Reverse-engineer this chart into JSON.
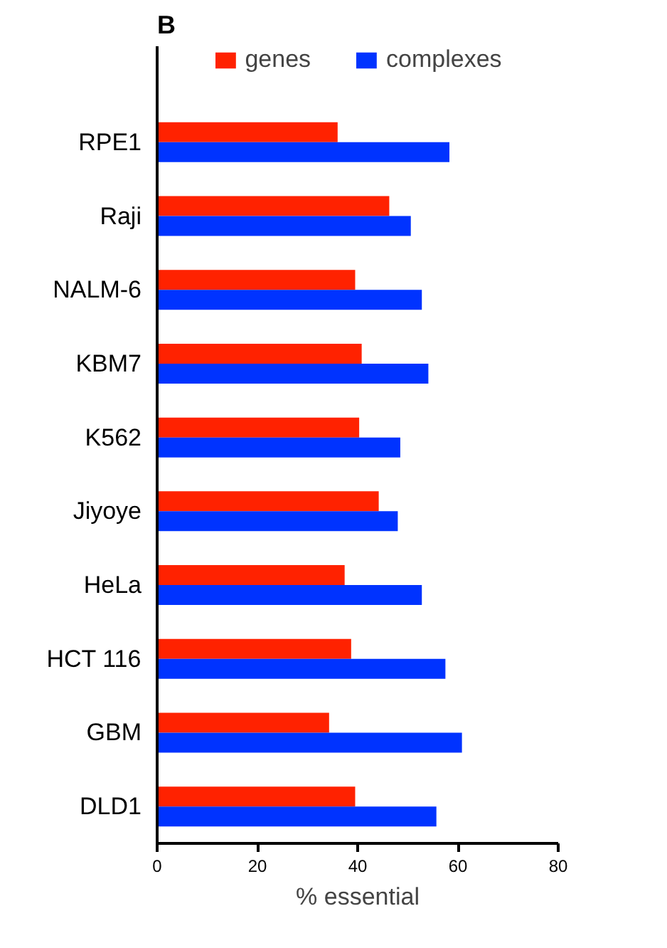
{
  "chart_data": {
    "type": "bar",
    "orientation": "horizontal",
    "xlabel": "% essential",
    "annotations": [
      "B"
    ],
    "categories": [
      "RPE1",
      "Raji",
      "NALM-6",
      "KBM7",
      "K562",
      "Jiyoye",
      "HeLa",
      "HCT 116",
      "GBM",
      "DLD1"
    ],
    "series": [
      {
        "name": "genes",
        "color": "#ff2200",
        "values": [
          36.0,
          46.3,
          39.5,
          40.8,
          40.3,
          44.2,
          37.4,
          38.7,
          34.3,
          39.5
        ]
      },
      {
        "name": "complexes",
        "color": "#0033ff",
        "values": [
          58.3,
          50.6,
          52.8,
          54.1,
          48.5,
          48.0,
          52.8,
          57.5,
          60.8,
          55.7
        ]
      }
    ],
    "xlim": [
      0,
      80
    ],
    "xticks": [
      0,
      20,
      40,
      60,
      80
    ],
    "grid": false,
    "legend": "top"
  }
}
